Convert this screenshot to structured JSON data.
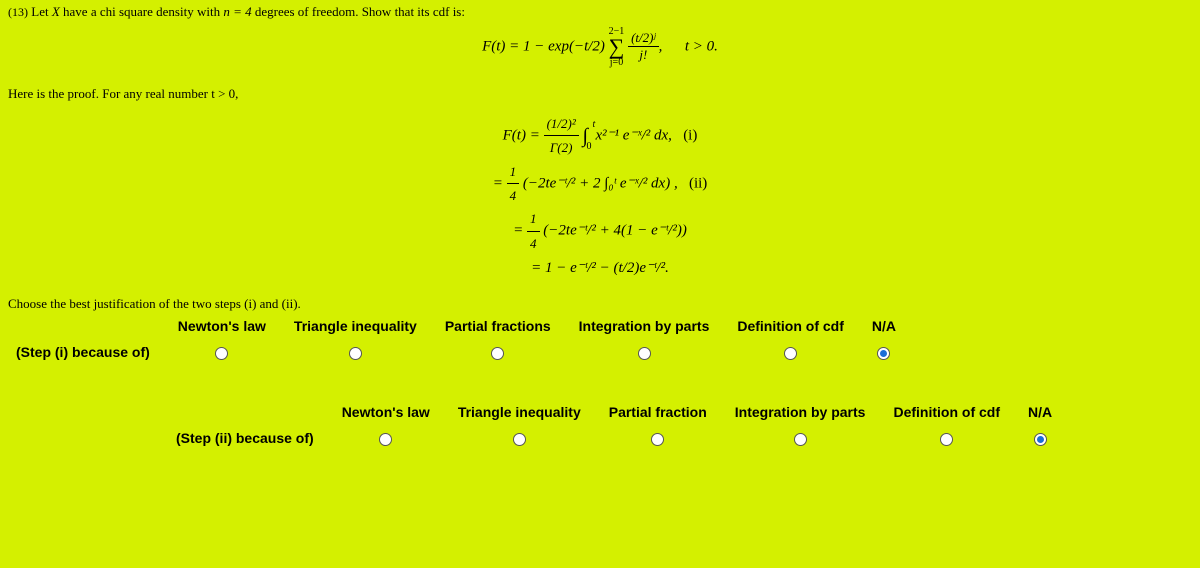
{
  "background_color": "#d4f000",
  "problem": {
    "number": "(13)",
    "text_before_var": "Let ",
    "var": "X",
    "text_mid": " have a chi square density with ",
    "n_expr": "n = 4",
    "text_after": " degrees of freedom. Show that its cdf is:"
  },
  "display_equation": {
    "lhs": "F(t) = 1 − exp(−t/2)",
    "sum_top": "2−1",
    "sum_bottom": "j=0",
    "frac_num": "(t/2)ʲ",
    "frac_den": "j!",
    "cond": "t > 0."
  },
  "proof_intro": "Here is the proof. For any real number t > 0,",
  "proof_lines": {
    "line1_lhs": "F(t) = ",
    "line1_frac_num": "(1/2)²",
    "line1_frac_den": "Γ(2)",
    "line1_int_upper": "t",
    "line1_int_lower": "0",
    "line1_integrand": "x²⁻¹ e⁻ˣ/² dx,",
    "line1_tag": "(i)",
    "line2_pre": "= ",
    "line2_frac_num": "1",
    "line2_frac_den": "4",
    "line2_body": "(−2te⁻ᵗ/² + 2 ∫₀ᵗ e⁻ˣ/² dx) ,",
    "line2_tag": "(ii)",
    "line3_pre": "= ",
    "line3_frac_num": "1",
    "line3_frac_den": "4",
    "line3_body": "(−2te⁻ᵗ/² + 4(1 − e⁻ᵗ/²))",
    "line4": "= 1 − e⁻ᵗ/² − (t/2)e⁻ᵗ/²."
  },
  "question": "Choose the best justification of the two steps (i) and (ii).",
  "columns": [
    "Newton's law",
    "Triangle inequality",
    "Partial fractions",
    "Integration by parts",
    "Definition of cdf",
    "N/A"
  ],
  "row1_label": "(Step (i) because of)",
  "row1_selected": 5,
  "columns2": [
    "Newton's law",
    "Triangle inequality",
    "Partial fraction",
    "Integration by parts",
    "Definition of cdf",
    "N/A"
  ],
  "row2_label": "(Step (ii) because of)",
  "row2_selected": 5
}
